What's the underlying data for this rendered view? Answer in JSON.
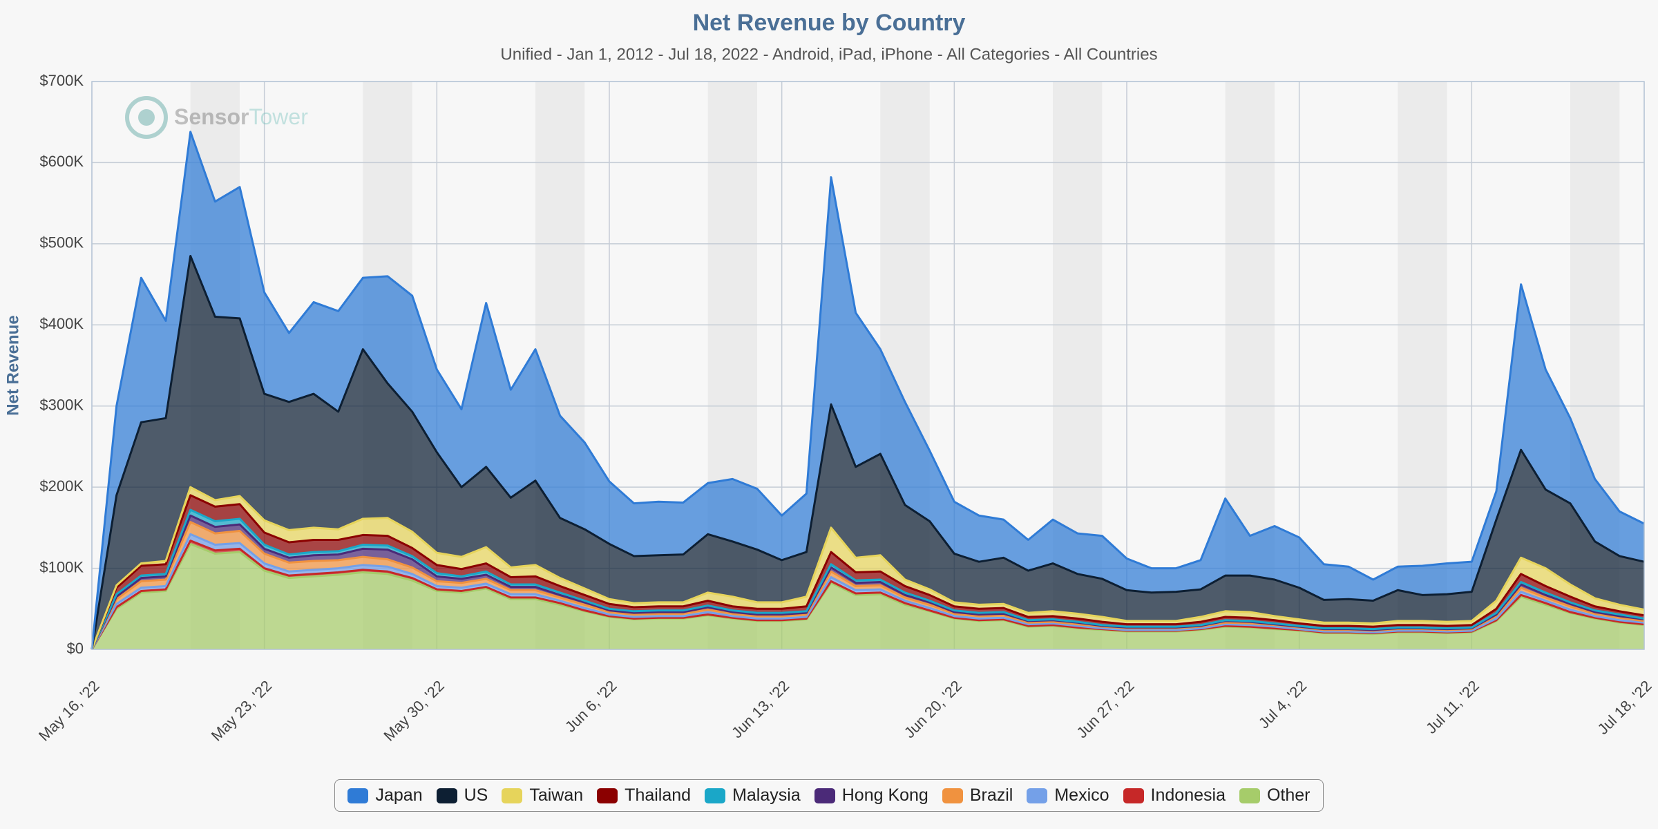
{
  "chart_data": {
    "type": "stacked_area",
    "title": "Net Revenue by Country",
    "subtitle": "Unified - Jan 1, 2012 - Jul 18, 2022 - Android, iPad, iPhone - All Categories - All Countries",
    "y_label": "Net Revenue",
    "watermark": [
      "Sensor",
      "Tower"
    ],
    "categories": [
      "May 16, '22",
      null,
      null,
      null,
      null,
      null,
      null,
      "May 23, '22",
      null,
      null,
      null,
      null,
      null,
      null,
      "May 30, '22",
      null,
      null,
      null,
      null,
      null,
      null,
      "Jun 6, '22",
      null,
      null,
      null,
      null,
      null,
      null,
      "Jun 13, '22",
      null,
      null,
      null,
      null,
      null,
      null,
      "Jun 20, '22",
      null,
      null,
      null,
      null,
      null,
      null,
      "Jun 27, '22",
      null,
      null,
      null,
      null,
      null,
      null,
      "Jul 4, '22",
      null,
      null,
      null,
      null,
      null,
      null,
      "Jul 11, '22",
      null,
      null,
      null,
      null,
      null,
      null,
      "Jul 18, '22"
    ],
    "ylim": [
      0,
      700000
    ],
    "yticks": [
      {
        "value": 0,
        "label": "$0"
      },
      {
        "value": 100000,
        "label": "$100K"
      },
      {
        "value": 200000,
        "label": "$200K"
      },
      {
        "value": 300000,
        "label": "$300K"
      },
      {
        "value": 400000,
        "label": "$400K"
      },
      {
        "value": 500000,
        "label": "$500K"
      },
      {
        "value": 600000,
        "label": "$600K"
      },
      {
        "value": 700000,
        "label": "$700K"
      }
    ],
    "grid": true,
    "series": [
      {
        "name": "Japan",
        "color": "#2f7bd6",
        "values": [
          0,
          110000,
          178000,
          120000,
          153000,
          142000,
          162000,
          125000,
          85000,
          113000,
          124000,
          88000,
          132000,
          143000,
          102000,
          96000,
          202000,
          133000,
          162000,
          126000,
          107000,
          77000,
          65000,
          66000,
          64000,
          63000,
          77000,
          75000,
          55000,
          72000,
          280000,
          190000,
          129000,
          127000,
          87000,
          64000,
          57000,
          47000,
          38000,
          54000,
          50000,
          53000,
          39000,
          30000,
          29000,
          36000,
          95000,
          49000,
          66000,
          62000,
          44000,
          40000,
          26000,
          29000,
          36000,
          38000,
          37000,
          35000,
          204000,
          148000,
          105000,
          77000,
          55000,
          47000
        ]
      },
      {
        "name": "US",
        "color": "#0d1f33",
        "values": [
          0,
          111000,
          174000,
          176000,
          285000,
          226000,
          219000,
          156000,
          158000,
          165000,
          145000,
          209000,
          166000,
          148000,
          124000,
          86000,
          99000,
          86000,
          104000,
          74000,
          73000,
          68000,
          58000,
          58000,
          59000,
          72000,
          68000,
          65000,
          52000,
          55000,
          152000,
          112000,
          125000,
          92000,
          84000,
          60000,
          53000,
          57000,
          52000,
          59000,
          49000,
          47000,
          38000,
          35000,
          36000,
          34000,
          44000,
          45000,
          45000,
          39000,
          28000,
          29000,
          28000,
          38000,
          32000,
          34000,
          36000,
          100000,
          133000,
          97000,
          100000,
          70000,
          60000,
          59000
        ]
      },
      {
        "name": "Taiwan",
        "color": "#e6d45b",
        "values": [
          0,
          3000,
          3000,
          4000,
          10000,
          8000,
          10000,
          15000,
          15000,
          15000,
          13000,
          20000,
          22000,
          20000,
          15000,
          15000,
          20000,
          12000,
          14000,
          10000,
          8000,
          6000,
          5000,
          5000,
          5000,
          10000,
          12000,
          8000,
          8000,
          12000,
          30000,
          18000,
          20000,
          8000,
          7000,
          5000,
          5000,
          5000,
          5000,
          6000,
          6000,
          6000,
          4000,
          4000,
          4000,
          6000,
          7000,
          7000,
          5000,
          5000,
          4000,
          4000,
          4000,
          5000,
          5000,
          5000,
          5000,
          10000,
          20000,
          22000,
          15000,
          10000,
          8000,
          7000
        ]
      },
      {
        "name": "Thailand",
        "color": "#8b0000",
        "values": [
          0,
          8000,
          12000,
          12000,
          18000,
          18000,
          18000,
          15000,
          15000,
          15000,
          14000,
          12000,
          12000,
          10000,
          10000,
          9000,
          10000,
          9000,
          10000,
          8000,
          7000,
          6000,
          5000,
          5000,
          5000,
          6000,
          5000,
          5000,
          5000,
          6000,
          15000,
          10000,
          10000,
          8000,
          7000,
          5000,
          5000,
          5000,
          4000,
          4000,
          4000,
          4000,
          3000,
          3000,
          3000,
          4000,
          4000,
          4000,
          4000,
          3000,
          3000,
          3000,
          3000,
          3000,
          3000,
          3000,
          3000,
          5000,
          10000,
          8000,
          7000,
          5000,
          4000,
          4000
        ]
      },
      {
        "name": "Malaysia",
        "color": "#1aa7c8",
        "values": [
          0,
          3000,
          3000,
          3000,
          7000,
          7000,
          7000,
          5000,
          4000,
          4000,
          4000,
          5000,
          5000,
          4000,
          4000,
          3000,
          4000,
          3000,
          3000,
          3000,
          2000,
          2000,
          2000,
          2000,
          2000,
          2000,
          2000,
          2000,
          2000,
          2000,
          4000,
          3000,
          3000,
          3000,
          2000,
          2000,
          2000,
          2000,
          1000,
          1000,
          1000,
          1000,
          1000,
          1000,
          1000,
          1000,
          1000,
          1000,
          1000,
          1000,
          1000,
          1000,
          1000,
          1000,
          1000,
          1000,
          1000,
          2000,
          3000,
          3000,
          2000,
          2000,
          2000,
          1000
        ]
      },
      {
        "name": "Hong Kong",
        "color": "#4b2a78",
        "values": [
          0,
          3000,
          4000,
          4000,
          8000,
          8000,
          8000,
          6000,
          6000,
          7000,
          7000,
          10000,
          12000,
          10000,
          6000,
          5000,
          5000,
          4000,
          4000,
          3000,
          3000,
          2000,
          2000,
          2000,
          2000,
          3000,
          2000,
          2000,
          2000,
          2000,
          5000,
          4000,
          4000,
          3000,
          3000,
          2000,
          2000,
          2000,
          2000,
          2000,
          2000,
          1000,
          1000,
          1000,
          1000,
          1000,
          2000,
          2000,
          1000,
          1000,
          1000,
          1000,
          1000,
          1000,
          1000,
          1000,
          1000,
          2000,
          4000,
          3000,
          3000,
          2000,
          2000,
          2000
        ]
      },
      {
        "name": "Brazil",
        "color": "#f0923f",
        "values": [
          0,
          6000,
          8000,
          8000,
          15000,
          14000,
          15000,
          12000,
          11000,
          11000,
          10000,
          10000,
          9000,
          8000,
          6000,
          6000,
          6000,
          5000,
          5000,
          4000,
          4000,
          3000,
          3000,
          3000,
          3000,
          3000,
          3000,
          3000,
          3000,
          3000,
          7000,
          5000,
          5000,
          4000,
          4000,
          3000,
          3000,
          3000,
          2000,
          2000,
          2000,
          2000,
          2000,
          2000,
          2000,
          2000,
          2000,
          2000,
          2000,
          2000,
          2000,
          2000,
          2000,
          2000,
          2000,
          2000,
          2000,
          3000,
          5000,
          4000,
          4000,
          3000,
          3000,
          2000
        ]
      },
      {
        "name": "Mexico",
        "color": "#74a0e8",
        "values": [
          0,
          4000,
          4000,
          4000,
          8000,
          7000,
          7000,
          6000,
          5000,
          5000,
          5000,
          6000,
          6000,
          5000,
          4000,
          4000,
          4000,
          4000,
          4000,
          3000,
          3000,
          2000,
          2000,
          2000,
          2000,
          3000,
          2000,
          2000,
          2000,
          2000,
          5000,
          4000,
          4000,
          3000,
          3000,
          2000,
          2000,
          2000,
          2000,
          2000,
          2000,
          1000,
          1000,
          1000,
          1000,
          1000,
          2000,
          2000,
          2000,
          1000,
          1000,
          1000,
          1000,
          1000,
          1000,
          1000,
          1000,
          2000,
          4000,
          3000,
          3000,
          2000,
          2000,
          2000
        ]
      },
      {
        "name": "Indonesia",
        "color": "#c62828",
        "values": [
          0,
          2000,
          2000,
          2000,
          4000,
          4000,
          4000,
          3000,
          3000,
          3000,
          3000,
          3000,
          3000,
          3000,
          2000,
          2000,
          2000,
          2000,
          2000,
          2000,
          1000,
          1000,
          1000,
          1000,
          1000,
          1000,
          1000,
          1000,
          1000,
          1000,
          2000,
          2000,
          2000,
          2000,
          1000,
          1000,
          1000,
          1000,
          1000,
          1000,
          1000,
          1000,
          1000,
          1000,
          1000,
          1000,
          1000,
          1000,
          1000,
          1000,
          1000,
          1000,
          1000,
          1000,
          1000,
          1000,
          1000,
          1000,
          2000,
          2000,
          1000,
          1000,
          1000,
          1000
        ]
      },
      {
        "name": "Other",
        "color": "#a6cc6a",
        "values": [
          0,
          50000,
          70000,
          72000,
          130000,
          118000,
          120000,
          97000,
          88000,
          90000,
          92000,
          95000,
          93000,
          85000,
          72000,
          70000,
          75000,
          62000,
          62000,
          55000,
          47000,
          40000,
          37000,
          38000,
          38000,
          42000,
          38000,
          35000,
          35000,
          37000,
          82000,
          67000,
          68000,
          55000,
          47000,
          38000,
          35000,
          36000,
          28000,
          29000,
          26000,
          24000,
          22000,
          22000,
          22000,
          24000,
          28000,
          27000,
          25000,
          23000,
          20000,
          20000,
          19000,
          21000,
          21000,
          20000,
          21000,
          35000,
          65000,
          55000,
          45000,
          38000,
          33000,
          30000
        ]
      }
    ]
  }
}
